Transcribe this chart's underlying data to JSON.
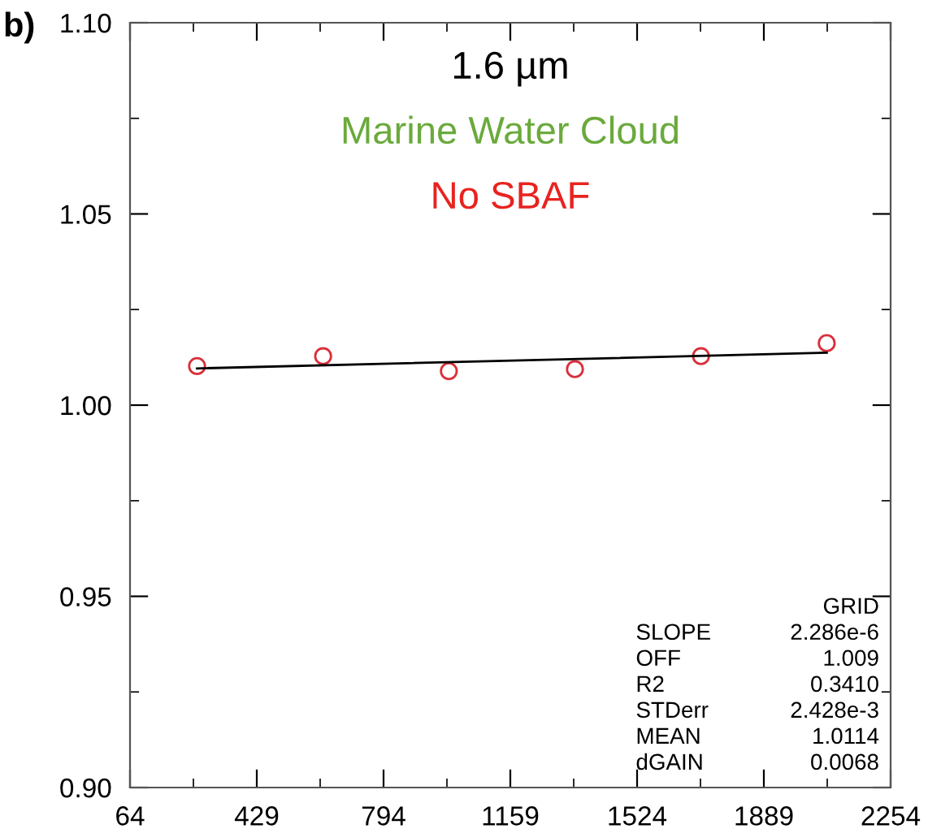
{
  "chart_data": {
    "type": "scatter",
    "annotations": [
      "1.6 µm",
      "Marine Water Cloud",
      "No SBAF",
      "b)",
      "GRID",
      "SLOPE",
      "2.286e-6",
      "OFF",
      "1.009",
      "R2",
      "0.3410",
      "STDerr",
      "2.428e-3",
      "MEAN",
      "1.0114",
      "dGAIN",
      "0.0068"
    ],
    "series": [
      {
        "color": "#d9303a",
        "marker": "circle",
        "x": [
          257,
          620,
          982,
          1345,
          1708,
          2070
        ],
        "values": [
          1.0102,
          1.0128,
          1.0089,
          1.0094,
          1.0128,
          1.0162
        ]
      },
      {
        "type": "line",
        "color": "#000000",
        "marker": "none",
        "line_style": "solid",
        "x": [
          257,
          2070
        ],
        "values": [
          1.0096,
          1.0137
        ]
      }
    ],
    "xlim": [
      64,
      2254
    ],
    "xticks": [
      64,
      429,
      794,
      1159,
      1524,
      1889,
      2254
    ],
    "ylim": [
      0.9,
      1.1
    ],
    "yticks": [
      {
        "value": 0.9,
        "label": "0.90"
      },
      {
        "value": 0.95,
        "label": "0.95"
      },
      {
        "value": 1.0,
        "label": "1.00"
      },
      {
        "value": 1.05,
        "label": "1.05"
      },
      {
        "value": 1.1,
        "label": "1.10"
      }
    ],
    "grid": false,
    "legend": false
  }
}
